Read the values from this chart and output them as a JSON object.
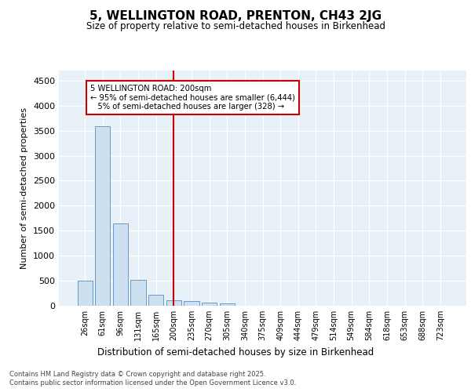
{
  "title_line1": "5, WELLINGTON ROAD, PRENTON, CH43 2JG",
  "title_line2": "Size of property relative to semi-detached houses in Birkenhead",
  "xlabel": "Distribution of semi-detached houses by size in Birkenhead",
  "ylabel": "Number of semi-detached properties",
  "categories": [
    "26sqm",
    "61sqm",
    "96sqm",
    "131sqm",
    "165sqm",
    "200sqm",
    "235sqm",
    "270sqm",
    "305sqm",
    "340sqm",
    "375sqm",
    "409sqm",
    "444sqm",
    "479sqm",
    "514sqm",
    "549sqm",
    "584sqm",
    "618sqm",
    "653sqm",
    "688sqm",
    "723sqm"
  ],
  "values": [
    500,
    3580,
    1650,
    510,
    215,
    115,
    90,
    60,
    50,
    0,
    0,
    0,
    0,
    0,
    0,
    0,
    0,
    0,
    0,
    0,
    0
  ],
  "bar_color": "#cce0f0",
  "bar_edge_color": "#6699cc",
  "vline_idx": 5,
  "vline_color": "#cc0000",
  "annotation_line1": "5 WELLINGTON ROAD: 200sqm",
  "annotation_line2": "← 95% of semi-detached houses are smaller (6,444)",
  "annotation_line3": "   5% of semi-detached houses are larger (328) →",
  "annotation_box_color": "#cc0000",
  "ylim": [
    0,
    4700
  ],
  "yticks": [
    0,
    500,
    1000,
    1500,
    2000,
    2500,
    3000,
    3500,
    4000,
    4500
  ],
  "footer_line1": "Contains HM Land Registry data © Crown copyright and database right 2025.",
  "footer_line2": "Contains public sector information licensed under the Open Government Licence v3.0.",
  "bg_color": "#e8f0f8",
  "fig_bg_color": "#ffffff",
  "grid_color": "#d0dce8"
}
